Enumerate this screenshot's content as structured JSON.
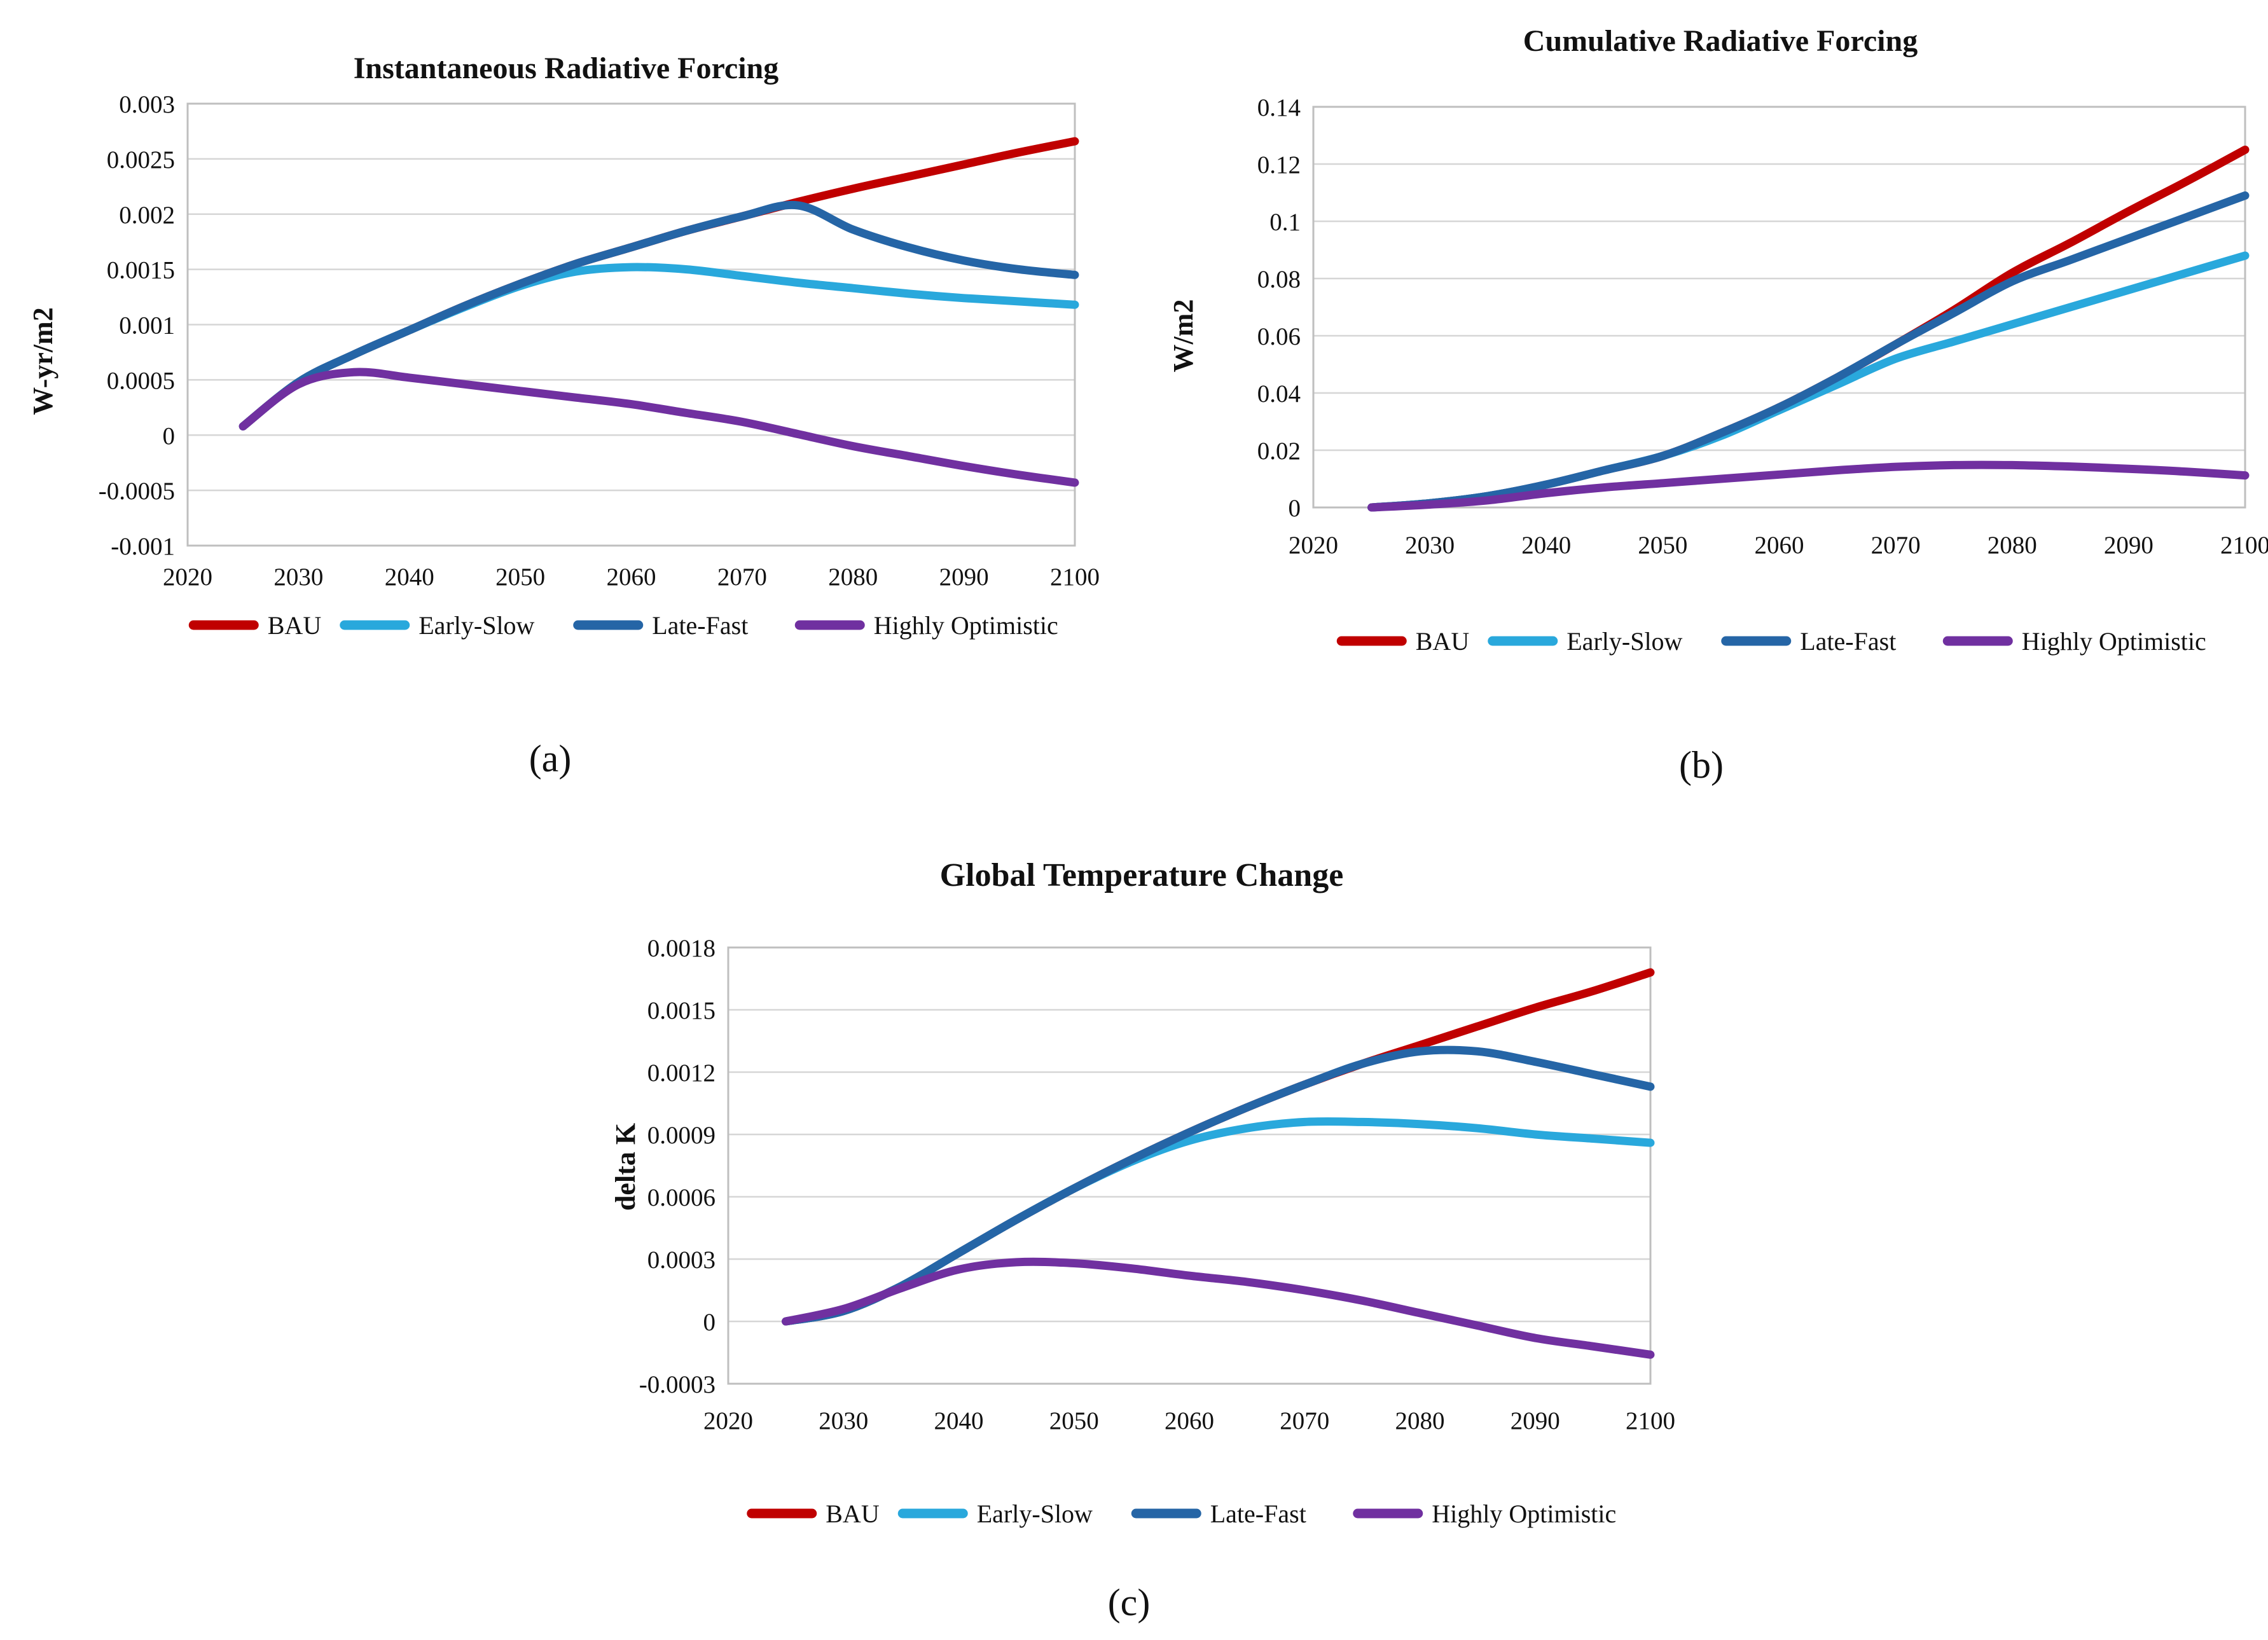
{
  "figure": {
    "background": "#FFFFFF",
    "text_color": "#111111",
    "gridline_color": "#D6D6D6",
    "plot_border_color": "#BFBFBF"
  },
  "chart_data": [
    {
      "type": "line",
      "panel_label": "(a)",
      "title": "Instantaneous Radiative Forcing",
      "xlabel": "",
      "ylabel": "W-yr/m2",
      "xlim": [
        2020,
        2100
      ],
      "ylim": [
        -0.001,
        0.003
      ],
      "grid": "horizontal",
      "legend_position": "bottom",
      "x_ticks": [
        "2020",
        "2030",
        "2040",
        "2050",
        "2060",
        "2070",
        "2080",
        "2090",
        "2100"
      ],
      "y_ticks": [
        "0.003",
        "0.0025",
        "0.002",
        "0.0015",
        "0.001",
        "0.0005",
        "0",
        "-0.0005",
        "-0.001"
      ],
      "x": [
        2025,
        2030,
        2035,
        2040,
        2045,
        2050,
        2055,
        2060,
        2065,
        2070,
        2075,
        2080,
        2085,
        2090,
        2095,
        2100
      ],
      "series": [
        {
          "name": "BAU",
          "color": "#C00000",
          "values": [
            8e-05,
            0.00048,
            0.00073,
            0.00095,
            0.00117,
            0.00137,
            0.00155,
            0.0017,
            0.00185,
            0.00198,
            0.00211,
            0.00223,
            0.00234,
            0.00245,
            0.00256,
            0.00266
          ]
        },
        {
          "name": "Early-Slow",
          "color": "#29A8DC",
          "values": [
            8e-05,
            0.00048,
            0.00073,
            0.00095,
            0.00116,
            0.00135,
            0.00148,
            0.00152,
            0.0015,
            0.00144,
            0.00138,
            0.00133,
            0.00128,
            0.00124,
            0.00121,
            0.00118
          ]
        },
        {
          "name": "Late-Fast",
          "color": "#2565A6",
          "values": [
            8e-05,
            0.00048,
            0.00073,
            0.00095,
            0.00117,
            0.00137,
            0.00155,
            0.0017,
            0.00185,
            0.00198,
            0.00208,
            0.00186,
            0.0017,
            0.00158,
            0.0015,
            0.00145
          ]
        },
        {
          "name": "Highly Optimistic",
          "color": "#7030A0",
          "values": [
            8e-05,
            0.00046,
            0.00057,
            0.00052,
            0.00046,
            0.0004,
            0.00034,
            0.00028,
            0.0002,
            0.00012,
            1e-05,
            -0.0001,
            -0.00019,
            -0.00028,
            -0.00036,
            -0.00043
          ]
        }
      ]
    },
    {
      "type": "line",
      "panel_label": "(b)",
      "title": "Cumulative Radiative Forcing",
      "xlabel": "",
      "ylabel": "W/m2",
      "xlim": [
        2020,
        2100
      ],
      "ylim": [
        0,
        0.14
      ],
      "grid": "horizontal",
      "legend_position": "bottom",
      "x_ticks": [
        "2020",
        "2030",
        "2040",
        "2050",
        "2060",
        "2070",
        "2080",
        "2090",
        "2100"
      ],
      "y_ticks": [
        "0.14",
        "0.12",
        "0.1",
        "0.08",
        "0.06",
        "0.04",
        "0.02",
        "0"
      ],
      "x": [
        2025,
        2030,
        2035,
        2040,
        2045,
        2050,
        2055,
        2060,
        2065,
        2070,
        2075,
        2080,
        2085,
        2090,
        2095,
        2100
      ],
      "series": [
        {
          "name": "BAU",
          "color": "#C00000",
          "values": [
            0,
            0.0015,
            0.004,
            0.008,
            0.013,
            0.018,
            0.026,
            0.035,
            0.0455,
            0.057,
            0.069,
            0.082,
            0.0925,
            0.1035,
            0.114,
            0.125
          ]
        },
        {
          "name": "Early-Slow",
          "color": "#29A8DC",
          "values": [
            0,
            0.0015,
            0.004,
            0.008,
            0.013,
            0.018,
            0.025,
            0.034,
            0.043,
            0.052,
            0.058,
            0.064,
            0.07,
            0.076,
            0.082,
            0.088
          ]
        },
        {
          "name": "Late-Fast",
          "color": "#2565A6",
          "values": [
            0,
            0.0015,
            0.004,
            0.008,
            0.013,
            0.018,
            0.026,
            0.035,
            0.0455,
            0.057,
            0.068,
            0.079,
            0.0865,
            0.094,
            0.1015,
            0.109
          ]
        },
        {
          "name": "Highly Optimistic",
          "color": "#7030A0",
          "values": [
            0,
            0.001,
            0.0025,
            0.005,
            0.007,
            0.0085,
            0.01,
            0.0115,
            0.013,
            0.0142,
            0.0148,
            0.0148,
            0.0143,
            0.0135,
            0.0125,
            0.0112
          ]
        }
      ]
    },
    {
      "type": "line",
      "panel_label": "(c)",
      "title": "Global Temperature Change",
      "xlabel": "",
      "ylabel": "delta K",
      "xlim": [
        2020,
        2100
      ],
      "ylim": [
        -0.0003,
        0.0018
      ],
      "grid": "horizontal",
      "legend_position": "bottom",
      "x_ticks": [
        "2020",
        "2030",
        "2040",
        "2050",
        "2060",
        "2070",
        "2080",
        "2090",
        "2100"
      ],
      "y_ticks": [
        "0.0018",
        "0.0015",
        "0.0012",
        "0.0009",
        "0.0006",
        "0.0003",
        "0",
        "-0.0003"
      ],
      "x": [
        2025,
        2030,
        2035,
        2040,
        2045,
        2050,
        2055,
        2060,
        2065,
        2070,
        2075,
        2080,
        2085,
        2090,
        2095,
        2100
      ],
      "series": [
        {
          "name": "BAU",
          "color": "#C00000",
          "values": [
            0,
            5e-05,
            0.00017,
            0.00033,
            0.00049,
            0.00064,
            0.00078,
            0.00091,
            0.00103,
            0.00114,
            0.00124,
            0.00133,
            0.00142,
            0.00151,
            0.00159,
            0.00168
          ]
        },
        {
          "name": "Early-Slow",
          "color": "#29A8DC",
          "values": [
            0,
            5e-05,
            0.00017,
            0.00033,
            0.00049,
            0.00064,
            0.00077,
            0.00087,
            0.00093,
            0.00096,
            0.00096,
            0.00095,
            0.00093,
            0.0009,
            0.00088,
            0.00086
          ]
        },
        {
          "name": "Late-Fast",
          "color": "#2565A6",
          "values": [
            0,
            5e-05,
            0.00017,
            0.00033,
            0.00049,
            0.00064,
            0.00078,
            0.00091,
            0.00103,
            0.00114,
            0.00124,
            0.0013,
            0.0013,
            0.00125,
            0.00119,
            0.00113
          ]
        },
        {
          "name": "Highly Optimistic",
          "color": "#7030A0",
          "values": [
            0,
            6e-05,
            0.00016,
            0.00025,
            0.000285,
            0.00028,
            0.000255,
            0.00022,
            0.00019,
            0.00015,
            0.0001,
            4e-05,
            -2e-05,
            -8e-05,
            -0.00012,
            -0.00016
          ]
        }
      ]
    }
  ]
}
